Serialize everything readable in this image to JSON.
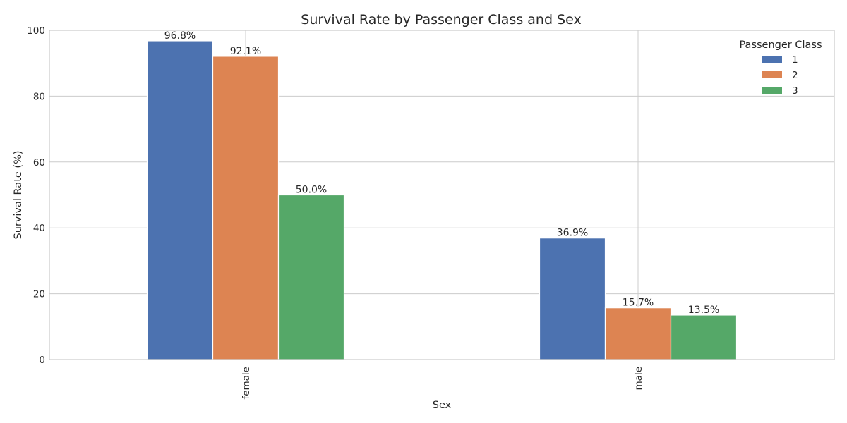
{
  "chart_data": {
    "type": "bar",
    "title": "Survival Rate by Passenger Class and Sex",
    "xlabel": "Sex",
    "ylabel": "Survival Rate (%)",
    "categories": [
      "female",
      "male"
    ],
    "series": [
      {
        "name": "1",
        "values": [
          96.8,
          36.9
        ],
        "labels": [
          "96.8%",
          "36.9%"
        ],
        "color": "#4c72b0"
      },
      {
        "name": "2",
        "values": [
          92.1,
          15.7
        ],
        "labels": [
          "92.1%",
          "15.7%"
        ],
        "color": "#dd8452"
      },
      {
        "name": "3",
        "values": [
          50.0,
          13.5
        ],
        "labels": [
          "50.0%",
          "13.5%"
        ],
        "color": "#55a868"
      }
    ],
    "ylim": [
      0,
      100
    ],
    "yticks": [
      0,
      20,
      40,
      60,
      80,
      100
    ],
    "grid": true,
    "legend": {
      "title": "Passenger Class",
      "placement": "top-right"
    }
  }
}
